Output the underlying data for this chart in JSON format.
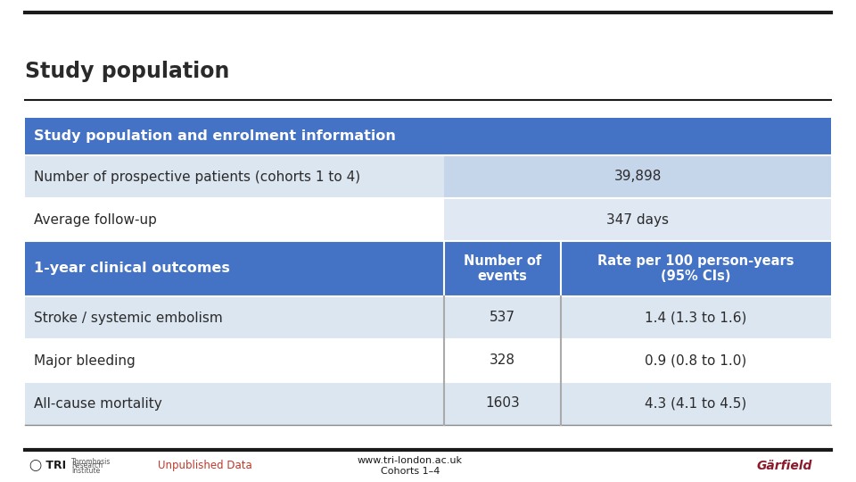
{
  "title": "Study population",
  "top_bar_color": "#1a1a1a",
  "header_bg": "#4472c4",
  "header_text": "Study population and enrolment information",
  "header_text_color": "#ffffff",
  "row1_label": "Number of prospective patients (cohorts 1 to 4)",
  "row1_value": "39,898",
  "row2_label": "Average follow-up",
  "row2_value": "347 days",
  "subheader_label": "1-year clinical outcomes",
  "subheader_col2": "Number of\nevents",
  "subheader_col3": "Rate per 100 person-years\n(95% CIs)",
  "data_rows": [
    [
      "Stroke / systemic embolism",
      "537",
      "1.4 (1.3 to 1.6)"
    ],
    [
      "Major bleeding",
      "328",
      "0.9 (0.8 to 1.0)"
    ],
    [
      "All-cause mortality",
      "1603",
      "4.3 (4.1 to 4.5)"
    ]
  ],
  "row_bg_odd": "#dce6f1",
  "row_bg_even": "#ffffff",
  "row_bg_odd_right": "#c5d5ea",
  "row_bg_even_right": "#e0e8f4",
  "subheader_bg": "#4472c4",
  "subheader_text_color": "#ffffff",
  "table_text_color": "#2a2a2a",
  "footer_text1": "Unpublished Data",
  "footer_text2": "www.tri-london.ac.uk\nCohorts 1–4",
  "footer_text1_color": "#c0392b",
  "footer_text2_color": "#1a1a1a",
  "bg_color": "#ffffff",
  "title_fontsize": 17,
  "cell_fontsize": 11,
  "header_fontsize": 11.5,
  "subheader_fontsize": 10.5
}
